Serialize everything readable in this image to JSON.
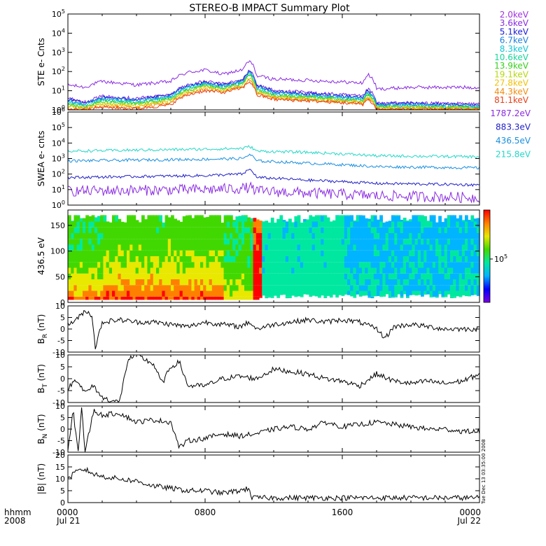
{
  "title": "STEREO-B IMPACT Summary Plot",
  "timestamp": "Tue Dec 13 03:35:00 2008",
  "x_axis": {
    "row_label_1": "hhmm",
    "row_label_2": "2008",
    "ticks": [
      {
        "hhmm": "0000",
        "date": "Jul 21",
        "hours": 0
      },
      {
        "hhmm": "0800",
        "date": "",
        "hours": 8
      },
      {
        "hhmm": "1600",
        "date": "",
        "hours": 16
      },
      {
        "hhmm": "0000",
        "date": "Jul 22",
        "hours": 24
      }
    ],
    "range_hours": [
      0,
      24
    ]
  },
  "chart_data": [
    {
      "type": "line",
      "ylabel": "STE e- Cnts",
      "yscale": "log",
      "ylim": [
        1,
        100000
      ],
      "yticks": [
        "10^0",
        "10^1",
        "10^2",
        "10^3",
        "10^4",
        "10^5"
      ],
      "series": [
        {
          "name": "2.0keV",
          "color": "#8a2be2",
          "x": [
            0,
            1,
            2,
            4,
            6,
            7,
            8,
            9,
            10.2,
            10.6,
            11,
            12,
            14,
            17.2,
            17.5,
            18,
            20,
            24
          ],
          "y": [
            20,
            15,
            30,
            20,
            30,
            90,
            120,
            70,
            120,
            350,
            60,
            40,
            35,
            25,
            70,
            12,
            15,
            15
          ]
        },
        {
          "name": "3.6keV",
          "color": "#7a2be0",
          "x": [
            0,
            1,
            2,
            4,
            6,
            7,
            8,
            9,
            10.2,
            10.6,
            11,
            12,
            14,
            17.2,
            17.5,
            18,
            20,
            24
          ],
          "y": [
            4,
            2.5,
            5,
            4,
            6,
            20,
            30,
            22,
            35,
            110,
            20,
            10,
            8,
            5,
            12,
            2.2,
            2.3,
            2
          ]
        },
        {
          "name": "5.1keV",
          "color": "#1a1ad8",
          "x": [
            0,
            1,
            2,
            4,
            6,
            7,
            8,
            9,
            10.2,
            10.6,
            11,
            12,
            14,
            17.2,
            17.5,
            18,
            20,
            24
          ],
          "y": [
            3.5,
            2.2,
            4.5,
            3.5,
            5.5,
            18,
            27,
            20,
            32,
            100,
            18,
            9,
            7,
            4.5,
            10,
            2,
            2.1,
            1.8
          ]
        },
        {
          "name": "6.7keV",
          "color": "#1f7fe0",
          "x": [
            0,
            1,
            2,
            4,
            6,
            7,
            8,
            9,
            10.2,
            10.6,
            11,
            12,
            14,
            17.2,
            17.5,
            18,
            20,
            24
          ],
          "y": [
            3,
            2,
            4,
            3,
            5,
            16,
            24,
            18,
            30,
            90,
            16,
            8,
            6,
            4,
            9,
            1.8,
            1.9,
            1.6
          ]
        },
        {
          "name": "8.3keV",
          "color": "#12c6d6",
          "x": [
            0,
            1,
            2,
            4,
            6,
            7,
            8,
            9,
            10.2,
            10.6,
            11,
            12,
            14,
            17.2,
            17.5,
            18,
            20,
            24
          ],
          "y": [
            2.6,
            1.8,
            3.5,
            2.6,
            4.5,
            14,
            22,
            16,
            27,
            80,
            14,
            7,
            5.5,
            3.6,
            8,
            1.6,
            1.7,
            1.5
          ]
        },
        {
          "name": "10.6keV",
          "color": "#17d79a",
          "x": [
            0,
            1,
            2,
            4,
            6,
            7,
            8,
            9,
            10.2,
            10.6,
            11,
            12,
            14,
            17.2,
            17.5,
            18,
            20,
            24
          ],
          "y": [
            2.2,
            1.6,
            3,
            2.3,
            4,
            12,
            20,
            14,
            25,
            70,
            12,
            6,
            5,
            3.2,
            7,
            1.5,
            1.5,
            1.4
          ]
        },
        {
          "name": "13.9keV",
          "color": "#38cf1e",
          "x": [
            0,
            1,
            2,
            4,
            6,
            7,
            8,
            9,
            10.2,
            10.6,
            11,
            12,
            14,
            17.2,
            17.5,
            18,
            20,
            24
          ],
          "y": [
            1.9,
            1.4,
            2.6,
            2,
            3.5,
            10,
            18,
            12,
            22,
            60,
            10,
            5.5,
            4.5,
            3,
            6,
            1.4,
            1.4,
            1.3
          ]
        },
        {
          "name": "19.1keV",
          "color": "#b5d90d",
          "x": [
            0,
            1,
            2,
            4,
            6,
            7,
            8,
            9,
            10.2,
            10.6,
            11,
            12,
            14,
            17.2,
            17.5,
            18,
            20,
            24
          ],
          "y": [
            1.6,
            1.3,
            2.2,
            1.8,
            3,
            9,
            16,
            11,
            20,
            50,
            9,
            5,
            4,
            2.7,
            5,
            1.3,
            1.3,
            1.2
          ]
        },
        {
          "name": "27.8keV",
          "color": "#f0c20a",
          "x": [
            0,
            1,
            2,
            4,
            6,
            7,
            8,
            9,
            10.2,
            10.6,
            11,
            12,
            14,
            17.2,
            17.5,
            18,
            20,
            24
          ],
          "y": [
            1.4,
            1.2,
            1.9,
            1.5,
            2.6,
            8,
            14,
            10,
            18,
            40,
            8,
            4.5,
            3.5,
            2.4,
            4.5,
            1.2,
            1.2,
            1.1
          ]
        },
        {
          "name": "44.3keV",
          "color": "#f28c0f",
          "x": [
            0,
            1,
            2,
            4,
            6,
            7,
            8,
            9,
            10.2,
            10.6,
            11,
            12,
            14,
            17.2,
            17.5,
            18,
            20,
            24
          ],
          "y": [
            1.2,
            1.1,
            1.6,
            1.3,
            2.2,
            7,
            12,
            9,
            16,
            35,
            7,
            4,
            3.2,
            2.2,
            4,
            1.1,
            1.1,
            1.05
          ]
        },
        {
          "name": "81.1keV",
          "color": "#e8401a",
          "x": [
            0,
            1,
            2,
            4,
            6,
            7,
            8,
            9,
            10.2,
            10.6,
            11,
            12,
            14,
            17.2,
            17.5,
            18,
            20,
            24
          ],
          "y": [
            1.1,
            1.05,
            1.4,
            1.15,
            1.8,
            6,
            10,
            8,
            14,
            30,
            6,
            3.5,
            3,
            2,
            3.5,
            1.05,
            1.05,
            1.02
          ]
        }
      ]
    },
    {
      "type": "line",
      "ylabel": "SWEA e- cnts",
      "yscale": "log",
      "ylim": [
        1,
        1000000
      ],
      "yticks": [
        "10^0",
        "10^1",
        "10^2",
        "10^3",
        "10^4",
        "10^5",
        "10^6"
      ],
      "series": [
        {
          "name": "1787.2eV",
          "color": "#8a2be2",
          "x": [
            0,
            4,
            8,
            10.2,
            10.6,
            11,
            14,
            18,
            24
          ],
          "y": [
            8,
            9,
            10,
            12,
            14,
            8,
            6,
            4,
            3
          ]
        },
        {
          "name": "883.3eV",
          "color": "#2020c8",
          "x": [
            0,
            4,
            8,
            10.2,
            10.6,
            11,
            14,
            18,
            24
          ],
          "y": [
            60,
            70,
            80,
            100,
            200,
            60,
            40,
            25,
            20
          ]
        },
        {
          "name": "436.5eV",
          "color": "#1a8fe0",
          "x": [
            0,
            4,
            8,
            10.2,
            10.6,
            11,
            14,
            18,
            24
          ],
          "y": [
            700,
            800,
            900,
            1000,
            1800,
            700,
            500,
            300,
            250
          ]
        },
        {
          "name": "215.8eV",
          "color": "#22d8c8",
          "x": [
            0,
            4,
            8,
            10.2,
            10.6,
            11,
            14,
            18,
            24
          ],
          "y": [
            3000,
            3500,
            4000,
            4500,
            6000,
            3000,
            2500,
            1500,
            1300
          ]
        }
      ]
    },
    {
      "type": "heatmap",
      "ylabel": "436.5 eV",
      "ylim": [
        0,
        180
      ],
      "yticks": [
        "0",
        "50",
        "100",
        "150"
      ],
      "colorbar_label": "10^5",
      "colorscale": [
        "#7a00e0",
        "#0000ff",
        "#00b4ff",
        "#00e8a0",
        "#40d800",
        "#e8e800",
        "#ff8000",
        "#ff0000"
      ],
      "description_intensity_by_hour": [
        {
          "hours": [
            0,
            2
          ],
          "low_pitch": 0.85,
          "high_pitch": 0.5
        },
        {
          "hours": [
            2,
            5
          ],
          "low_pitch": 0.9,
          "high_pitch": 0.55
        },
        {
          "hours": [
            5,
            9
          ],
          "low_pitch": 0.9,
          "high_pitch": 0.55
        },
        {
          "hours": [
            9,
            10.8
          ],
          "low_pitch": 0.7,
          "high_pitch": 0.5
        },
        {
          "hours": [
            10.8,
            11.2
          ],
          "low_pitch": 0.95,
          "high_pitch": 0.9
        },
        {
          "hours": [
            11.2,
            16
          ],
          "low_pitch": 0.45,
          "high_pitch": 0.42
        },
        {
          "hours": [
            16,
            24
          ],
          "low_pitch": 0.4,
          "high_pitch": 0.35
        }
      ]
    },
    {
      "type": "line",
      "ylabel": "B_R (nT)",
      "ylim": [
        -10,
        10
      ],
      "yticks": [
        "-10",
        "-5",
        "0",
        "5",
        "10"
      ],
      "series": [
        {
          "name": "",
          "color": "#000000",
          "x": [
            0,
            0.5,
            1,
            1.4,
            1.6,
            2,
            3,
            4,
            5,
            6,
            7,
            8,
            9,
            10,
            10.6,
            11,
            12,
            13,
            14,
            15,
            16,
            17,
            18,
            18.5,
            19,
            20,
            21,
            22,
            23,
            24
          ],
          "y": [
            2,
            4,
            8,
            6,
            -8,
            3,
            4,
            3,
            3,
            2,
            1,
            3,
            2,
            1,
            3,
            0,
            2,
            3,
            4,
            3,
            4,
            3,
            0,
            -4,
            1,
            2,
            1,
            0,
            0,
            0
          ]
        }
      ]
    },
    {
      "type": "line",
      "ylabel": "B_T (nT)",
      "ylim": [
        -10,
        10
      ],
      "yticks": [
        "-10",
        "-5",
        "0",
        "5",
        "10"
      ],
      "series": [
        {
          "name": "",
          "color": "#000000",
          "x": [
            0,
            0.5,
            1,
            1.5,
            2,
            2.5,
            3,
            3.5,
            4,
            5,
            5.5,
            6,
            6.5,
            7,
            8,
            9,
            10,
            11,
            12,
            13,
            14,
            15,
            16,
            17,
            18,
            19,
            20,
            21,
            22,
            23,
            24
          ],
          "y": [
            -4,
            0,
            -6,
            -3,
            -8,
            -9,
            -10,
            8,
            10,
            6,
            -2,
            5,
            7,
            -3,
            -3,
            0,
            1,
            0,
            4,
            3,
            2,
            0,
            -1,
            -3,
            2,
            -1,
            -2,
            -1,
            -2,
            -1,
            2
          ]
        }
      ]
    },
    {
      "type": "line",
      "ylabel": "B_N (nT)",
      "ylim": [
        -10,
        10
      ],
      "yticks": [
        "-10",
        "-5",
        "0",
        "5",
        "10"
      ],
      "series": [
        {
          "name": "",
          "color": "#000000",
          "x": [
            0,
            0.3,
            0.6,
            0.8,
            1,
            1.5,
            2,
            3,
            4,
            5,
            6,
            6.5,
            7,
            8,
            9,
            10,
            11,
            12,
            13,
            14,
            15,
            16,
            17,
            18,
            19,
            20,
            21,
            22,
            23,
            24
          ],
          "y": [
            -10,
            8,
            -10,
            10,
            -10,
            8,
            6,
            7,
            3,
            4,
            3,
            -8,
            -5,
            -4,
            -2,
            -3,
            -2,
            0,
            1,
            0,
            3,
            1,
            2,
            3,
            2,
            1,
            0,
            0,
            -1,
            -1
          ]
        }
      ]
    },
    {
      "type": "line",
      "ylabel": "|B| (nT)",
      "ylim": [
        0,
        20
      ],
      "yticks": [
        "0",
        "5",
        "10",
        "15",
        "20"
      ],
      "series": [
        {
          "name": "",
          "color": "#000000",
          "x": [
            0,
            0.5,
            1,
            1.5,
            2,
            3,
            4,
            5,
            6,
            7,
            8,
            9,
            10,
            10.6,
            10.7,
            11,
            12,
            14,
            16,
            18,
            20,
            22,
            24
          ],
          "y": [
            10,
            13,
            14,
            12,
            11,
            10,
            9,
            7,
            6,
            5,
            5,
            4,
            5,
            6,
            2,
            2,
            2,
            2,
            2,
            2,
            2,
            2,
            2
          ]
        }
      ]
    }
  ],
  "legends": {
    "ste": [
      "2.0keV",
      "3.6keV",
      "5.1keV",
      "6.7keV",
      "8.3keV",
      "10.6keV",
      "13.9keV",
      "19.1keV",
      "27.8keV",
      "44.3keV",
      "81.1keV"
    ],
    "ste_colors": [
      "#a030e0",
      "#8a2be2",
      "#1a1ad8",
      "#1f7fe0",
      "#12c6d6",
      "#17d79a",
      "#38cf1e",
      "#b5d90d",
      "#f0c20a",
      "#f28c0f",
      "#e8401a"
    ],
    "swea": [
      "1787.2eV",
      "883.3eV",
      "436.5eV",
      "215.8eV"
    ],
    "swea_colors": [
      "#8a2be2",
      "#2020c8",
      "#1a8fe0",
      "#22d8c8"
    ]
  }
}
